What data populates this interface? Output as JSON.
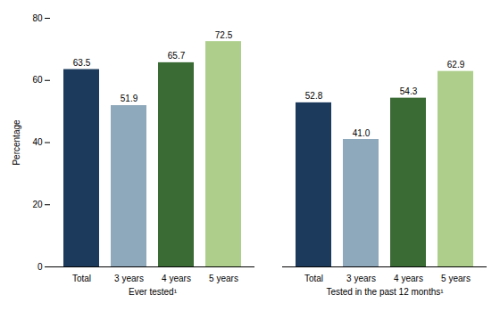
{
  "chart_data": {
    "type": "bar",
    "ylabel": "Percentage",
    "categories": [
      "Ever tested¹",
      "Tested in the past 12 months¹"
    ],
    "series": [
      {
        "name": "Total",
        "color": "#1B3A5C",
        "values": [
          63.5,
          52.8
        ],
        "value_labels": [
          "63.5",
          "52.8"
        ]
      },
      {
        "name": "3 years",
        "color": "#8FA9BC",
        "values": [
          51.9,
          41.0
        ],
        "value_labels": [
          "51.9",
          "41.0"
        ]
      },
      {
        "name": "4 years",
        "color": "#3A6B35",
        "values": [
          65.7,
          54.3
        ],
        "value_labels": [
          "65.7",
          "54.3"
        ]
      },
      {
        "name": "5 years",
        "color": "#AECF8C",
        "values": [
          72.5,
          62.9
        ],
        "value_labels": [
          "72.5",
          "62.9"
        ]
      }
    ],
    "ylim": [
      0,
      80
    ],
    "yticks": [
      0,
      20,
      40,
      60,
      80
    ],
    "grid": false,
    "data_labels": true
  }
}
